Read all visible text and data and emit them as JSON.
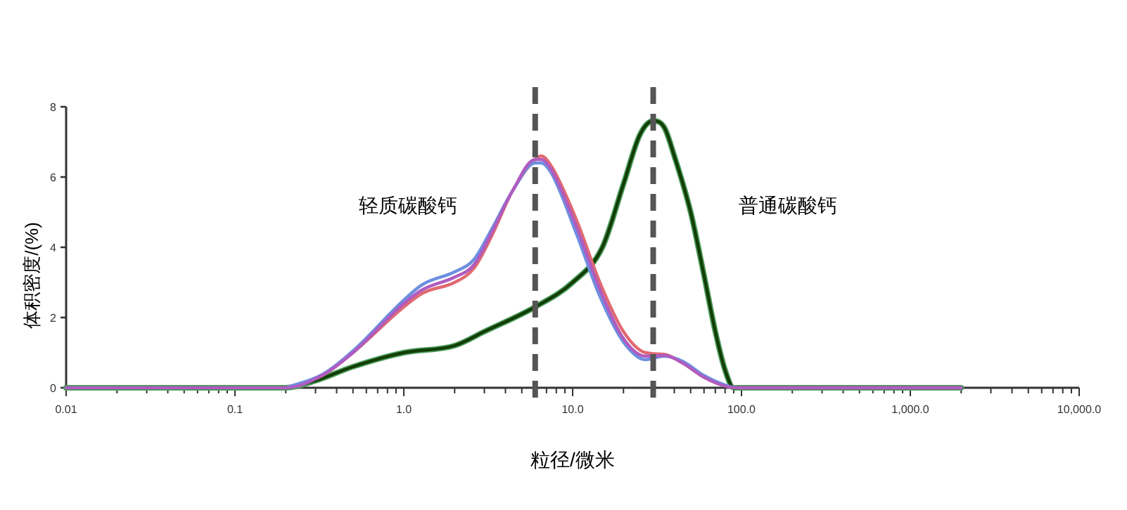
{
  "chart_data": {
    "type": "line",
    "xlabel": "粒径/微米",
    "ylabel": "体积密度/(%)",
    "log": "x",
    "grid": false,
    "marker": "none",
    "line_style": "solid",
    "xlim": [
      0.01,
      10000
    ],
    "ylim": [
      0,
      8
    ],
    "yticks": [
      0,
      2,
      4,
      6,
      8
    ],
    "xticks": [
      {
        "value": 0.01,
        "label": "0.01"
      },
      {
        "value": 0.02,
        "label": null
      },
      {
        "value": 0.03,
        "label": null
      },
      {
        "value": 0.04,
        "label": null
      },
      {
        "value": 0.05,
        "label": null
      },
      {
        "value": 0.06,
        "label": null
      },
      {
        "value": 0.07,
        "label": null
      },
      {
        "value": 0.08,
        "label": null
      },
      {
        "value": 0.09,
        "label": null
      },
      {
        "value": 0.1,
        "label": "0.1"
      },
      {
        "value": 0.2,
        "label": null
      },
      {
        "value": 0.3,
        "label": null
      },
      {
        "value": 0.4,
        "label": null
      },
      {
        "value": 0.5,
        "label": null
      },
      {
        "value": 0.6,
        "label": null
      },
      {
        "value": 0.7,
        "label": null
      },
      {
        "value": 0.8,
        "label": null
      },
      {
        "value": 0.9,
        "label": null
      },
      {
        "value": 1,
        "label": "1.0"
      },
      {
        "value": 2,
        "label": null
      },
      {
        "value": 3,
        "label": null
      },
      {
        "value": 4,
        "label": null
      },
      {
        "value": 5,
        "label": null
      },
      {
        "value": 6,
        "label": null
      },
      {
        "value": 7,
        "label": null
      },
      {
        "value": 8,
        "label": null
      },
      {
        "value": 9,
        "label": null
      },
      {
        "value": 10,
        "label": "10.0"
      },
      {
        "value": 20,
        "label": null
      },
      {
        "value": 30,
        "label": null
      },
      {
        "value": 40,
        "label": null
      },
      {
        "value": 50,
        "label": null
      },
      {
        "value": 60,
        "label": null
      },
      {
        "value": 70,
        "label": null
      },
      {
        "value": 80,
        "label": null
      },
      {
        "value": 90,
        "label": null
      },
      {
        "value": 100,
        "label": "100.0"
      },
      {
        "value": 200,
        "label": null
      },
      {
        "value": 300,
        "label": null
      },
      {
        "value": 400,
        "label": null
      },
      {
        "value": 500,
        "label": null
      },
      {
        "value": 600,
        "label": null
      },
      {
        "value": 700,
        "label": null
      },
      {
        "value": 800,
        "label": null
      },
      {
        "value": 900,
        "label": null
      },
      {
        "value": 1000,
        "label": "1,000.0"
      },
      {
        "value": 2000,
        "label": null
      },
      {
        "value": 3000,
        "label": null
      },
      {
        "value": 4000,
        "label": null
      },
      {
        "value": 5000,
        "label": null
      },
      {
        "value": 6000,
        "label": null
      },
      {
        "value": 7000,
        "label": null
      },
      {
        "value": 8000,
        "label": null
      },
      {
        "value": 9000,
        "label": null
      },
      {
        "value": 10000,
        "label": "10,000.0"
      }
    ],
    "series": [
      {
        "color": "#4a9a5a",
        "x": [
          0.01,
          0.2,
          0.3,
          0.5,
          1,
          2,
          3,
          6,
          10,
          15,
          20,
          25,
          30,
          35,
          40,
          50,
          60,
          70,
          80,
          90,
          2000
        ],
        "values": [
          0,
          0,
          0.2,
          0.6,
          1.0,
          1.2,
          1.6,
          2.3,
          3.0,
          4.0,
          5.8,
          7.2,
          7.6,
          7.4,
          6.6,
          5.0,
          3.2,
          1.6,
          0.5,
          0,
          0
        ]
      },
      {
        "color": "#123d05",
        "x": [
          0.2,
          0.3,
          0.5,
          1,
          2,
          3,
          6,
          10,
          15,
          20,
          25,
          30,
          35,
          40,
          50,
          60,
          70,
          80,
          90,
          2000
        ],
        "values": [
          0,
          0.2,
          0.6,
          1.0,
          1.2,
          1.6,
          2.3,
          3.0,
          4.0,
          5.8,
          7.2,
          7.6,
          7.4,
          6.6,
          5.0,
          3.2,
          1.6,
          0.5,
          0,
          0
        ]
      },
      {
        "color": "#e06a70",
        "x": [
          0.2,
          0.33,
          0.5,
          1,
          1.3,
          2,
          2.6,
          3.3,
          4.4,
          6,
          6.5,
          7.5,
          10.5,
          14.5,
          20,
          27,
          35,
          45,
          60,
          80,
          95,
          2000
        ],
        "values": [
          0,
          0.35,
          1.0,
          2.3,
          2.7,
          3.0,
          3.4,
          4.3,
          5.6,
          6.5,
          6.6,
          6.3,
          4.8,
          3.0,
          1.6,
          1.0,
          0.95,
          0.7,
          0.3,
          0.05,
          0,
          0
        ]
      },
      {
        "color": "#6d8fe0",
        "x": [
          0.2,
          0.33,
          0.5,
          1,
          1.3,
          2,
          2.6,
          3.3,
          4.4,
          6,
          6.5,
          7.5,
          10.5,
          14.5,
          20,
          27,
          35,
          45,
          60,
          80,
          95,
          2000
        ],
        "values": [
          0,
          0.38,
          1.05,
          2.5,
          2.95,
          3.3,
          3.65,
          4.5,
          5.6,
          6.4,
          6.4,
          6.1,
          4.4,
          2.6,
          1.3,
          0.8,
          0.9,
          0.75,
          0.35,
          0.08,
          0,
          0
        ]
      },
      {
        "color": "#b05cc0",
        "x": [
          0.01,
          0.2,
          0.33,
          0.5,
          1,
          1.3,
          2,
          2.6,
          3.3,
          4.4,
          6,
          6.5,
          7.5,
          10.5,
          14.5,
          20,
          27,
          35,
          45,
          60,
          80,
          95,
          2000
        ],
        "values": [
          0,
          0,
          0.36,
          1.0,
          2.4,
          2.8,
          3.15,
          3.5,
          4.4,
          5.6,
          6.5,
          6.5,
          6.2,
          4.6,
          2.8,
          1.4,
          0.9,
          0.92,
          0.7,
          0.3,
          0.05,
          0,
          0
        ]
      }
    ],
    "ref_lines": [
      {
        "axis": "x",
        "value": 6,
        "label": null,
        "color": "#555555",
        "line_style": "dashed"
      },
      {
        "axis": "x",
        "value": 30,
        "label": null,
        "color": "#555555",
        "line_style": "dashed"
      }
    ],
    "annotations": [
      "轻质碳酸钙",
      "普通碳酸钙"
    ]
  }
}
